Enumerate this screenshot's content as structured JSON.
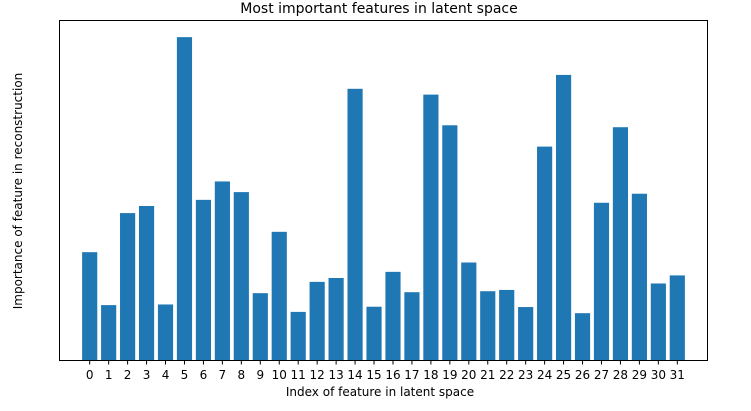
{
  "chart_data": {
    "type": "bar",
    "title": "Most important features in latent space",
    "xlabel": "Index of feature in latent space",
    "ylabel": "Importance of feature in reconstruction",
    "categories": [
      "0",
      "1",
      "2",
      "3",
      "4",
      "5",
      "6",
      "7",
      "8",
      "9",
      "10",
      "11",
      "12",
      "13",
      "14",
      "15",
      "16",
      "17",
      "18",
      "19",
      "20",
      "21",
      "22",
      "23",
      "24",
      "25",
      "26",
      "27",
      "28",
      "29",
      "30",
      "31"
    ],
    "values": [
      0.334,
      0.17,
      0.455,
      0.477,
      0.172,
      1.0,
      0.496,
      0.553,
      0.52,
      0.207,
      0.397,
      0.149,
      0.242,
      0.254,
      0.84,
      0.165,
      0.273,
      0.21,
      0.822,
      0.727,
      0.302,
      0.213,
      0.217,
      0.164,
      0.661,
      0.883,
      0.145,
      0.487,
      0.721,
      0.515,
      0.237,
      0.262
    ],
    "ylim": [
      0,
      1.05
    ],
    "yticks_visible": false,
    "grid": false,
    "bar_color": "#1f77b4"
  }
}
